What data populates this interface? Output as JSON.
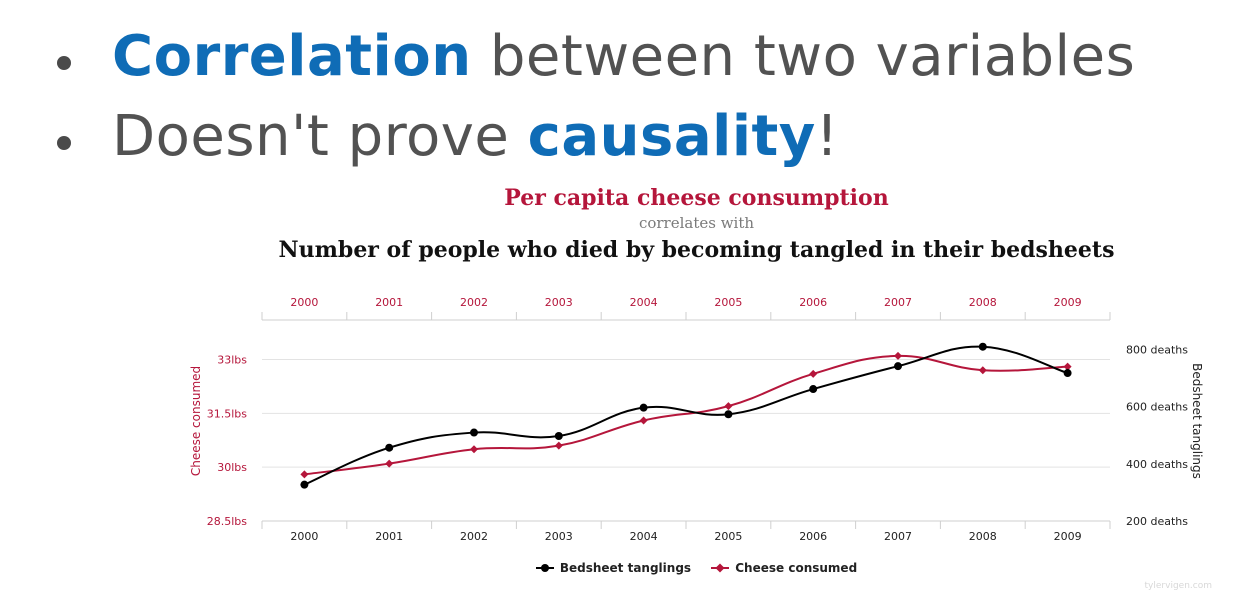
{
  "bullets": [
    {
      "highlight": "Correlation",
      "rest": " between two variables"
    },
    {
      "prefix": "Doesn't prove ",
      "highlight": "causality",
      "suffix": "!"
    }
  ],
  "chart": {
    "title": "Per capita cheese consumption",
    "subtitle": "correlates with",
    "title2": "Number of people who died by becoming tangled in their bedsheets",
    "watermark": "tylervigen.com"
  },
  "colors": {
    "accent_blue": "#0f6cb6",
    "cheese": "#b5163b",
    "bedsheet": "#000000",
    "grid": "#e3e3e3"
  },
  "chart_data": {
    "type": "line",
    "x": [
      "2000",
      "2001",
      "2002",
      "2003",
      "2004",
      "2005",
      "2006",
      "2007",
      "2008",
      "2009"
    ],
    "left_axis": {
      "label": "Cheese consumed",
      "ticks": [
        "28.5lbs",
        "30lbs",
        "31.5lbs",
        "33lbs"
      ],
      "range": [
        28.5,
        34.1
      ]
    },
    "right_axis": {
      "label": "Bedsheet tanglings",
      "ticks": [
        "200 deaths",
        "400 deaths",
        "600 deaths",
        "800 deaths"
      ],
      "range": [
        200,
        780
      ]
    },
    "series": [
      {
        "name": "Bedsheet tanglings",
        "axis": "right",
        "color": "#000000",
        "marker": "circle",
        "values": [
          327,
          456,
          509,
          497,
          596,
          573,
          661,
          741,
          809,
          717
        ]
      },
      {
        "name": "Cheese consumed",
        "axis": "left",
        "color": "#b5163b",
        "marker": "diamond",
        "values": [
          29.8,
          30.1,
          30.5,
          30.6,
          31.3,
          31.7,
          32.6,
          33.1,
          32.7,
          32.8
        ]
      }
    ],
    "legend_position": "bottom-center",
    "grid": true
  }
}
